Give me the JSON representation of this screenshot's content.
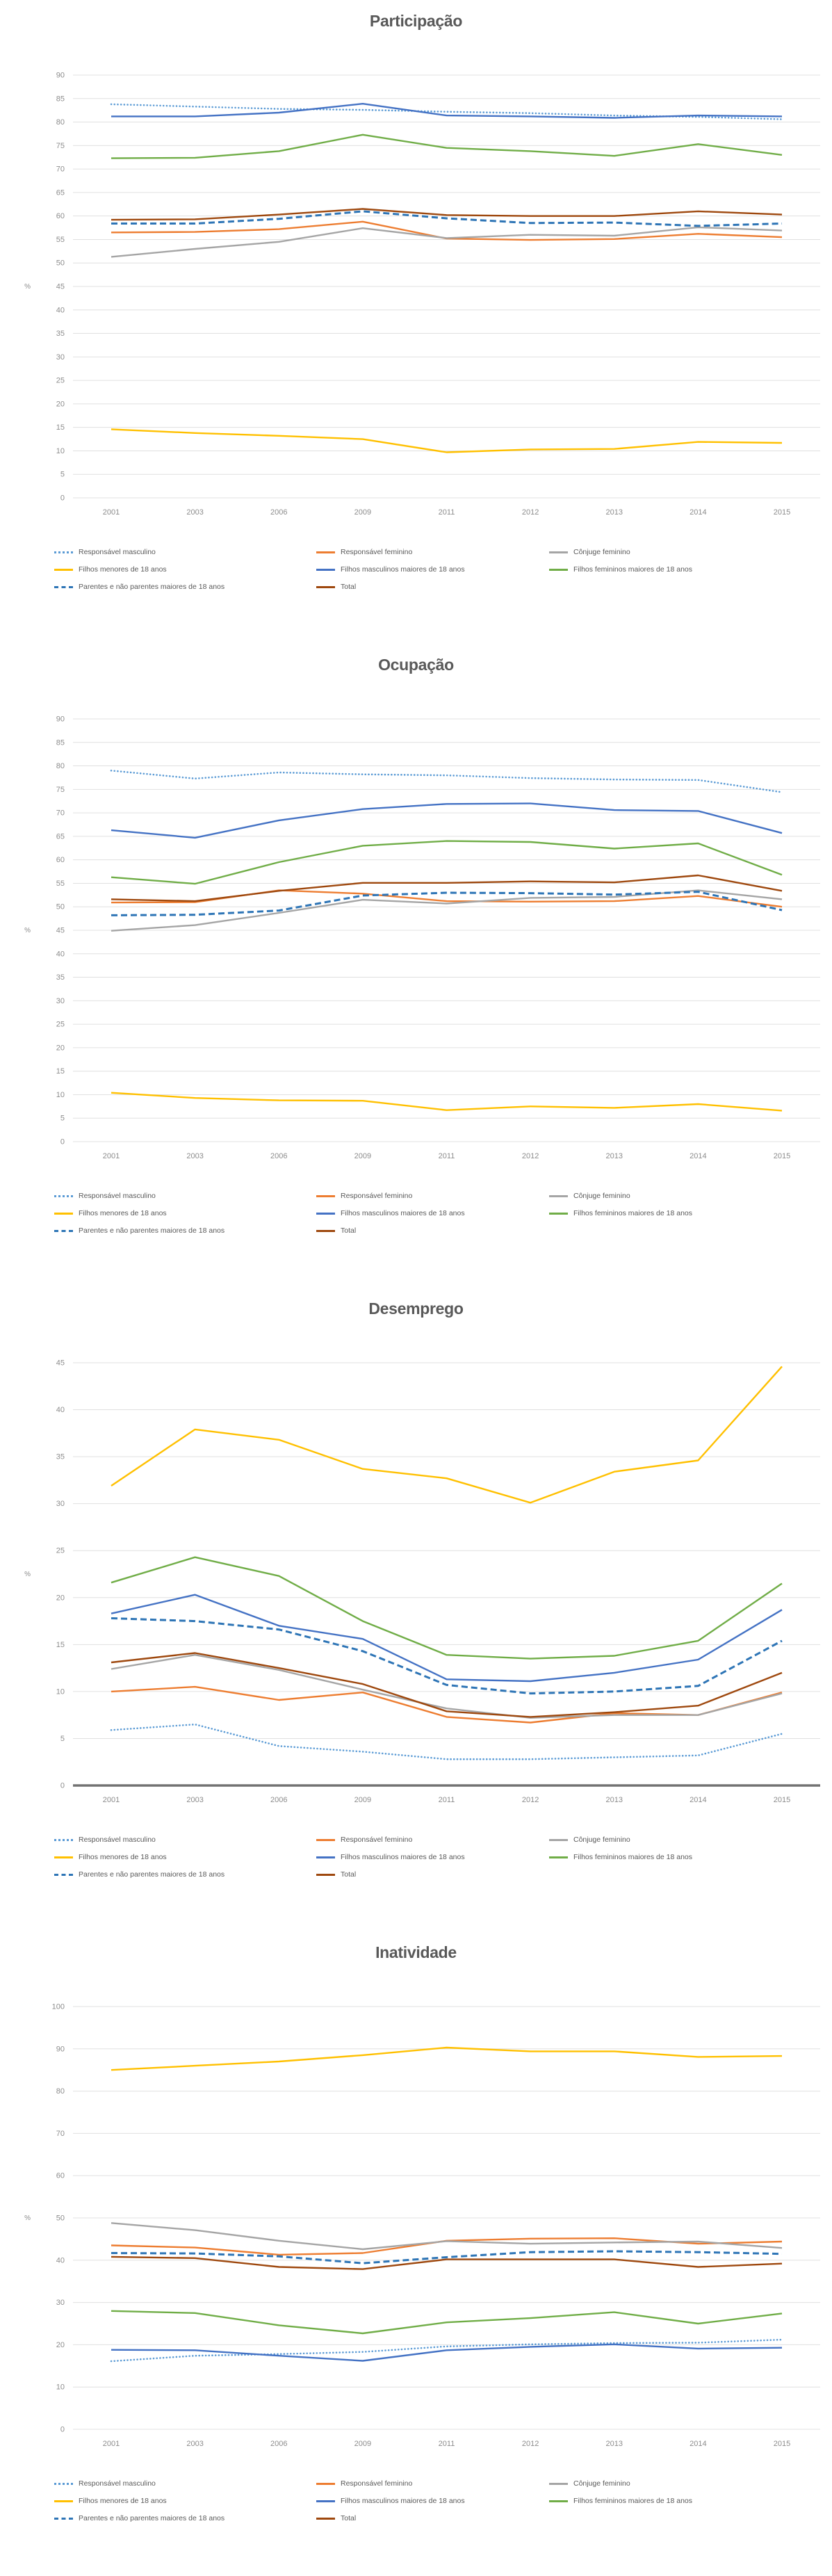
{
  "page": {
    "background": "#ffffff",
    "text_color": "#595959",
    "grid_color": "#e0e0e0",
    "tick_color": "#8c8c8c"
  },
  "chart_data": [
    {
      "type": "line",
      "title": "Participação",
      "ylabel": "%",
      "grid": true,
      "legend_position": "bottom",
      "ylim": [
        0,
        90
      ],
      "ytick_step": 5,
      "baseline_heavy": false,
      "categories": [
        "2001",
        "2003",
        "2006",
        "2009",
        "2011",
        "2012",
        "2013",
        "2014",
        "2015"
      ],
      "series": [
        {
          "name": "Responsável masculino",
          "color": "#5B9BD5",
          "line_style": "dotted",
          "values": [
            83.8,
            83.3,
            82.8,
            82.6,
            82.2,
            81.9,
            81.4,
            81.1,
            80.6
          ]
        },
        {
          "name": "Responsável feminino",
          "color": "#ED7D31",
          "line_style": "solid",
          "values": [
            56.5,
            56.6,
            57.2,
            58.8,
            55.2,
            54.9,
            55.1,
            56.2,
            55.5
          ]
        },
        {
          "name": "Cônjuge feminino",
          "color": "#A5A5A5",
          "line_style": "solid",
          "values": [
            51.3,
            53.0,
            54.5,
            57.4,
            55.3,
            56.0,
            55.8,
            57.6,
            56.9
          ]
        },
        {
          "name": "Filhos menores de 18 anos",
          "color": "#FFC000",
          "line_style": "solid",
          "values": [
            14.6,
            13.8,
            13.2,
            12.5,
            9.7,
            10.3,
            10.4,
            11.9,
            11.7
          ]
        },
        {
          "name": "Filhos masculinos maiores de 18 anos",
          "color": "#4472C4",
          "line_style": "solid",
          "values": [
            81.2,
            81.2,
            82.0,
            83.9,
            81.4,
            81.2,
            80.9,
            81.4,
            81.2
          ]
        },
        {
          "name": "Filhos femininos maiores de 18 anos",
          "color": "#70AD47",
          "line_style": "solid",
          "values": [
            72.3,
            72.4,
            73.8,
            77.3,
            74.5,
            73.8,
            72.8,
            75.3,
            73.0
          ]
        },
        {
          "name": "Parentes e não parentes maiores de 18 anos",
          "color": "#2E75B6",
          "line_style": "dashed",
          "values": [
            58.4,
            58.4,
            59.4,
            61.0,
            59.5,
            58.5,
            58.6,
            57.9,
            58.4
          ]
        },
        {
          "name": "Total",
          "color": "#9E480E",
          "line_style": "solid",
          "values": [
            59.2,
            59.3,
            60.3,
            61.5,
            60.2,
            60.0,
            60.0,
            61.0,
            60.3
          ]
        }
      ]
    },
    {
      "type": "line",
      "title": "Ocupação",
      "ylabel": "%",
      "grid": true,
      "legend_position": "bottom",
      "ylim": [
        0,
        90
      ],
      "ytick_step": 5,
      "baseline_heavy": false,
      "categories": [
        "2001",
        "2003",
        "2006",
        "2009",
        "2011",
        "2012",
        "2013",
        "2014",
        "2015"
      ],
      "series": [
        {
          "name": "Responsável masculino",
          "color": "#5B9BD5",
          "line_style": "dotted",
          "values": [
            79.0,
            77.3,
            78.6,
            78.2,
            78.0,
            77.4,
            77.1,
            77.0,
            74.4
          ]
        },
        {
          "name": "Responsável feminino",
          "color": "#ED7D31",
          "line_style": "solid",
          "values": [
            50.9,
            51.0,
            53.5,
            52.8,
            51.2,
            51.1,
            51.2,
            52.3,
            50.0
          ]
        },
        {
          "name": "Cônjuge feminino",
          "color": "#A5A5A5",
          "line_style": "solid",
          "values": [
            44.9,
            46.1,
            48.7,
            51.5,
            50.7,
            51.9,
            52.1,
            53.5,
            51.6
          ]
        },
        {
          "name": "Filhos menores de 18 anos",
          "color": "#FFC000",
          "line_style": "solid",
          "values": [
            10.4,
            9.3,
            8.8,
            8.7,
            6.7,
            7.5,
            7.2,
            8.0,
            6.6
          ]
        },
        {
          "name": "Filhos masculinos maiores de 18 anos",
          "color": "#4472C4",
          "line_style": "solid",
          "values": [
            66.3,
            64.7,
            68.4,
            70.8,
            71.9,
            72.0,
            70.6,
            70.4,
            65.7
          ]
        },
        {
          "name": "Filhos femininos maiores de 18 anos",
          "color": "#70AD47",
          "line_style": "solid",
          "values": [
            56.3,
            54.9,
            59.5,
            63.0,
            64.0,
            63.8,
            62.4,
            63.5,
            56.8
          ]
        },
        {
          "name": "Parentes e não parentes maiores de 18 anos",
          "color": "#2E75B6",
          "line_style": "dashed",
          "values": [
            48.2,
            48.3,
            49.2,
            52.4,
            53.0,
            52.9,
            52.6,
            53.2,
            49.3
          ]
        },
        {
          "name": "Total",
          "color": "#9E480E",
          "line_style": "solid",
          "values": [
            51.6,
            51.2,
            53.4,
            55.1,
            55.1,
            55.4,
            55.2,
            56.7,
            53.4
          ]
        }
      ]
    },
    {
      "type": "line",
      "title": "Desemprego",
      "ylabel": "%",
      "grid": true,
      "legend_position": "bottom",
      "ylim": [
        0,
        45
      ],
      "ytick_step": 5,
      "baseline_heavy": true,
      "categories": [
        "2001",
        "2003",
        "2006",
        "2009",
        "2011",
        "2012",
        "2013",
        "2014",
        "2015"
      ],
      "series": [
        {
          "name": "Responsável masculino",
          "color": "#5B9BD5",
          "line_style": "dotted",
          "values": [
            5.9,
            6.5,
            4.2,
            3.6,
            2.8,
            2.8,
            3.0,
            3.2,
            5.5
          ]
        },
        {
          "name": "Responsável feminino",
          "color": "#ED7D31",
          "line_style": "solid",
          "values": [
            10.0,
            10.5,
            9.1,
            9.9,
            7.3,
            6.7,
            7.7,
            7.5,
            9.9
          ]
        },
        {
          "name": "Cônjuge feminino",
          "color": "#A5A5A5",
          "line_style": "solid",
          "values": [
            12.4,
            13.9,
            12.3,
            10.2,
            8.2,
            7.2,
            7.5,
            7.5,
            9.8
          ]
        },
        {
          "name": "Filhos menores de 18 anos",
          "color": "#FFC000",
          "line_style": "solid",
          "values": [
            31.9,
            37.9,
            36.8,
            33.7,
            32.7,
            30.1,
            33.4,
            34.6,
            44.6
          ]
        },
        {
          "name": "Filhos masculinos maiores de 18 anos",
          "color": "#4472C4",
          "line_style": "solid",
          "values": [
            18.3,
            20.3,
            17.0,
            15.6,
            11.3,
            11.1,
            12.0,
            13.4,
            18.7
          ]
        },
        {
          "name": "Filhos femininos maiores de 18 anos",
          "color": "#70AD47",
          "line_style": "solid",
          "values": [
            21.6,
            24.3,
            22.3,
            17.5,
            13.9,
            13.5,
            13.8,
            15.4,
            21.5
          ]
        },
        {
          "name": "Parentes e não parentes maiores de 18 anos",
          "color": "#2E75B6",
          "line_style": "dashed",
          "values": [
            17.8,
            17.5,
            16.6,
            14.3,
            10.7,
            9.8,
            10.0,
            10.6,
            15.4
          ]
        },
        {
          "name": "Total",
          "color": "#9E480E",
          "line_style": "solid",
          "values": [
            13.1,
            14.1,
            12.5,
            10.8,
            7.9,
            7.3,
            7.8,
            8.5,
            12.0
          ]
        }
      ]
    },
    {
      "type": "line",
      "title": "Inatividade",
      "ylabel": "%",
      "grid": true,
      "legend_position": "bottom",
      "ylim": [
        0,
        100
      ],
      "ytick_step": 10,
      "baseline_heavy": false,
      "categories": [
        "2001",
        "2003",
        "2006",
        "2009",
        "2011",
        "2012",
        "2013",
        "2014",
        "2015"
      ],
      "series": [
        {
          "name": "Responsável masculino",
          "color": "#5B9BD5",
          "line_style": "dotted",
          "values": [
            16.1,
            17.4,
            17.8,
            18.3,
            19.6,
            20.1,
            20.4,
            20.5,
            21.2
          ]
        },
        {
          "name": "Responsável feminino",
          "color": "#ED7D31",
          "line_style": "solid",
          "values": [
            43.5,
            43.0,
            41.3,
            41.7,
            44.6,
            45.1,
            45.2,
            43.9,
            44.4
          ]
        },
        {
          "name": "Cônjuge feminino",
          "color": "#A5A5A5",
          "line_style": "solid",
          "values": [
            48.8,
            47.1,
            44.6,
            42.6,
            44.5,
            43.9,
            44.2,
            44.4,
            42.9
          ]
        },
        {
          "name": "Filhos menores de 18 anos",
          "color": "#FFC000",
          "line_style": "solid",
          "values": [
            85.0,
            86.0,
            87.0,
            88.5,
            90.3,
            89.4,
            89.4,
            88.1,
            88.3
          ]
        },
        {
          "name": "Filhos masculinos maiores de 18 anos",
          "color": "#4472C4",
          "line_style": "solid",
          "values": [
            18.8,
            18.7,
            17.4,
            16.2,
            18.7,
            19.5,
            20.1,
            19.1,
            19.3
          ]
        },
        {
          "name": "Filhos femininos maiores de 18 anos",
          "color": "#70AD47",
          "line_style": "solid",
          "values": [
            28.0,
            27.5,
            24.6,
            22.7,
            25.3,
            26.3,
            27.7,
            25.0,
            27.4
          ]
        },
        {
          "name": "Parentes e não parentes maiores de 18 anos",
          "color": "#2E75B6",
          "line_style": "dashed",
          "values": [
            41.7,
            41.6,
            40.9,
            39.3,
            40.7,
            41.9,
            42.1,
            41.9,
            41.5
          ]
        },
        {
          "name": "Total",
          "color": "#9E480E",
          "line_style": "solid",
          "values": [
            40.8,
            40.5,
            38.4,
            37.9,
            40.2,
            40.2,
            40.2,
            38.4,
            39.2
          ]
        }
      ]
    }
  ]
}
